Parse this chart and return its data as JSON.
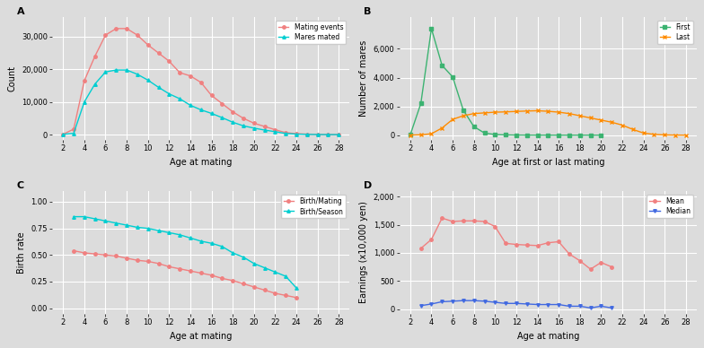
{
  "panel_A": {
    "title": "A",
    "xlabel": "Age at mating",
    "ylabel": "Count",
    "xlim": [
      1,
      29
    ],
    "ylim": [
      -1500,
      36000
    ],
    "yticks": [
      0,
      10000,
      20000,
      30000
    ],
    "ytick_labels": [
      "0",
      "10,000",
      "20,000",
      "30,000"
    ],
    "xticks": [
      2,
      4,
      6,
      8,
      10,
      12,
      14,
      16,
      18,
      20,
      22,
      24,
      26,
      28
    ],
    "mating_events": {
      "x": [
        2,
        3,
        4,
        5,
        6,
        7,
        8,
        9,
        10,
        11,
        12,
        13,
        14,
        15,
        16,
        17,
        18,
        19,
        20,
        21,
        22,
        23,
        24,
        25,
        26,
        27,
        28
      ],
      "y": [
        100,
        1700,
        16500,
        24000,
        30500,
        32500,
        32500,
        30500,
        27500,
        25000,
        22500,
        19000,
        18000,
        16000,
        12000,
        9500,
        7000,
        5000,
        3500,
        2500,
        1500,
        600,
        300,
        150,
        80,
        40,
        20
      ],
      "color": "#F08080",
      "marker": "o",
      "label": "Mating events"
    },
    "mares_mated": {
      "x": [
        2,
        3,
        4,
        5,
        6,
        7,
        8,
        9,
        10,
        11,
        12,
        13,
        14,
        15,
        16,
        17,
        18,
        19,
        20,
        21,
        22,
        23,
        24,
        25,
        26,
        27,
        28
      ],
      "y": [
        80,
        400,
        10000,
        15500,
        19200,
        19800,
        19800,
        18500,
        16700,
        14500,
        12500,
        11000,
        9000,
        7600,
        6500,
        5200,
        3800,
        2700,
        2000,
        1400,
        900,
        350,
        150,
        70,
        35,
        15,
        8
      ],
      "color": "#00CED1",
      "marker": "^",
      "label": "Mares mated"
    }
  },
  "panel_B": {
    "title": "B",
    "xlabel": "Age at first or last mating",
    "ylabel": "Number of mares",
    "xlim": [
      1,
      29
    ],
    "ylim": [
      -300,
      8200
    ],
    "yticks": [
      0,
      2000,
      4000,
      6000
    ],
    "ytick_labels": [
      "0",
      "2,000",
      "4,000",
      "6,000"
    ],
    "xticks": [
      2,
      4,
      6,
      8,
      10,
      12,
      14,
      16,
      18,
      20,
      22,
      24,
      26,
      28
    ],
    "first": {
      "x": [
        2,
        3,
        4,
        5,
        6,
        7,
        8,
        9,
        10,
        11,
        12,
        13,
        14,
        15,
        16,
        17,
        18,
        19,
        20
      ],
      "y": [
        20,
        2200,
        7400,
        4850,
        4050,
        1750,
        600,
        150,
        50,
        20,
        10,
        5,
        3,
        2,
        1,
        1,
        1,
        1,
        1
      ],
      "color": "#3CB371",
      "marker": "s",
      "label": "First"
    },
    "last": {
      "x": [
        2,
        3,
        4,
        5,
        6,
        7,
        8,
        9,
        10,
        11,
        12,
        13,
        14,
        15,
        16,
        17,
        18,
        19,
        20,
        21,
        22,
        23,
        24,
        25,
        26,
        27,
        28
      ],
      "y": [
        10,
        30,
        100,
        500,
        1100,
        1350,
        1500,
        1550,
        1600,
        1620,
        1650,
        1680,
        1700,
        1660,
        1600,
        1500,
        1350,
        1200,
        1050,
        900,
        700,
        400,
        150,
        60,
        20,
        8,
        3
      ],
      "color": "#FF8C00",
      "marker": "x",
      "label": "Last"
    }
  },
  "panel_C": {
    "title": "C",
    "xlabel": "Age at mating",
    "ylabel": "Birth rate",
    "xlim": [
      1,
      29
    ],
    "ylim": [
      -0.05,
      1.1
    ],
    "yticks": [
      0.0,
      0.25,
      0.5,
      0.75,
      1.0
    ],
    "ytick_labels": [
      "0.00",
      "0.25",
      "0.50",
      "0.75",
      "1.00"
    ],
    "xticks": [
      2,
      4,
      6,
      8,
      10,
      12,
      14,
      16,
      18,
      20,
      22,
      24,
      26,
      28
    ],
    "birth_mating": {
      "x": [
        3,
        4,
        5,
        6,
        7,
        8,
        9,
        10,
        11,
        12,
        13,
        14,
        15,
        16,
        17,
        18,
        19,
        20,
        21,
        22,
        23,
        24
      ],
      "y": [
        0.54,
        0.52,
        0.51,
        0.5,
        0.49,
        0.47,
        0.45,
        0.44,
        0.42,
        0.39,
        0.37,
        0.35,
        0.33,
        0.31,
        0.28,
        0.26,
        0.23,
        0.2,
        0.17,
        0.14,
        0.12,
        0.1
      ],
      "color": "#F08080",
      "marker": "o",
      "label": "Birth/Mating"
    },
    "birth_season": {
      "x": [
        3,
        4,
        5,
        6,
        7,
        8,
        9,
        10,
        11,
        12,
        13,
        14,
        15,
        16,
        17,
        18,
        19,
        20,
        21,
        22,
        23,
        24
      ],
      "y": [
        0.86,
        0.86,
        0.84,
        0.82,
        0.8,
        0.78,
        0.76,
        0.75,
        0.73,
        0.71,
        0.69,
        0.66,
        0.63,
        0.61,
        0.58,
        0.52,
        0.48,
        0.42,
        0.38,
        0.34,
        0.3,
        0.19
      ],
      "color": "#00CED1",
      "marker": "^",
      "label": "Birth/Season"
    }
  },
  "panel_D": {
    "title": "D",
    "xlabel": "Age at mating",
    "ylabel": "Earnings (x10,000 yen)",
    "xlim": [
      1,
      29
    ],
    "ylim": [
      -80,
      2100
    ],
    "yticks": [
      0,
      500,
      1000,
      1500,
      2000
    ],
    "ytick_labels": [
      "0",
      "500",
      "1,000",
      "1,500",
      "2,000"
    ],
    "xticks": [
      2,
      4,
      6,
      8,
      10,
      12,
      14,
      16,
      18,
      20,
      22,
      24,
      26,
      28
    ],
    "mean": {
      "x": [
        3,
        4,
        5,
        6,
        7,
        8,
        9,
        10,
        11,
        12,
        13,
        14,
        15,
        16,
        17,
        18,
        19,
        20,
        21
      ],
      "y": [
        1080,
        1240,
        1620,
        1560,
        1570,
        1570,
        1560,
        1470,
        1170,
        1150,
        1140,
        1130,
        1180,
        1200,
        980,
        860,
        710,
        830,
        750
      ],
      "color": "#F08080",
      "marker": "o",
      "label": "Mean"
    },
    "median": {
      "x": [
        3,
        4,
        5,
        6,
        7,
        8,
        9,
        10,
        11,
        12,
        13,
        14,
        15,
        16,
        17,
        18,
        19,
        20,
        21
      ],
      "y": [
        60,
        90,
        130,
        140,
        150,
        150,
        140,
        120,
        100,
        100,
        90,
        80,
        80,
        80,
        50,
        50,
        20,
        50,
        20
      ],
      "color": "#4169E1",
      "marker": "v",
      "label": "Median"
    }
  },
  "bg_color": "#DCDCDC",
  "grid_color": "#FFFFFF",
  "fig_bg": "#DCDCDC"
}
